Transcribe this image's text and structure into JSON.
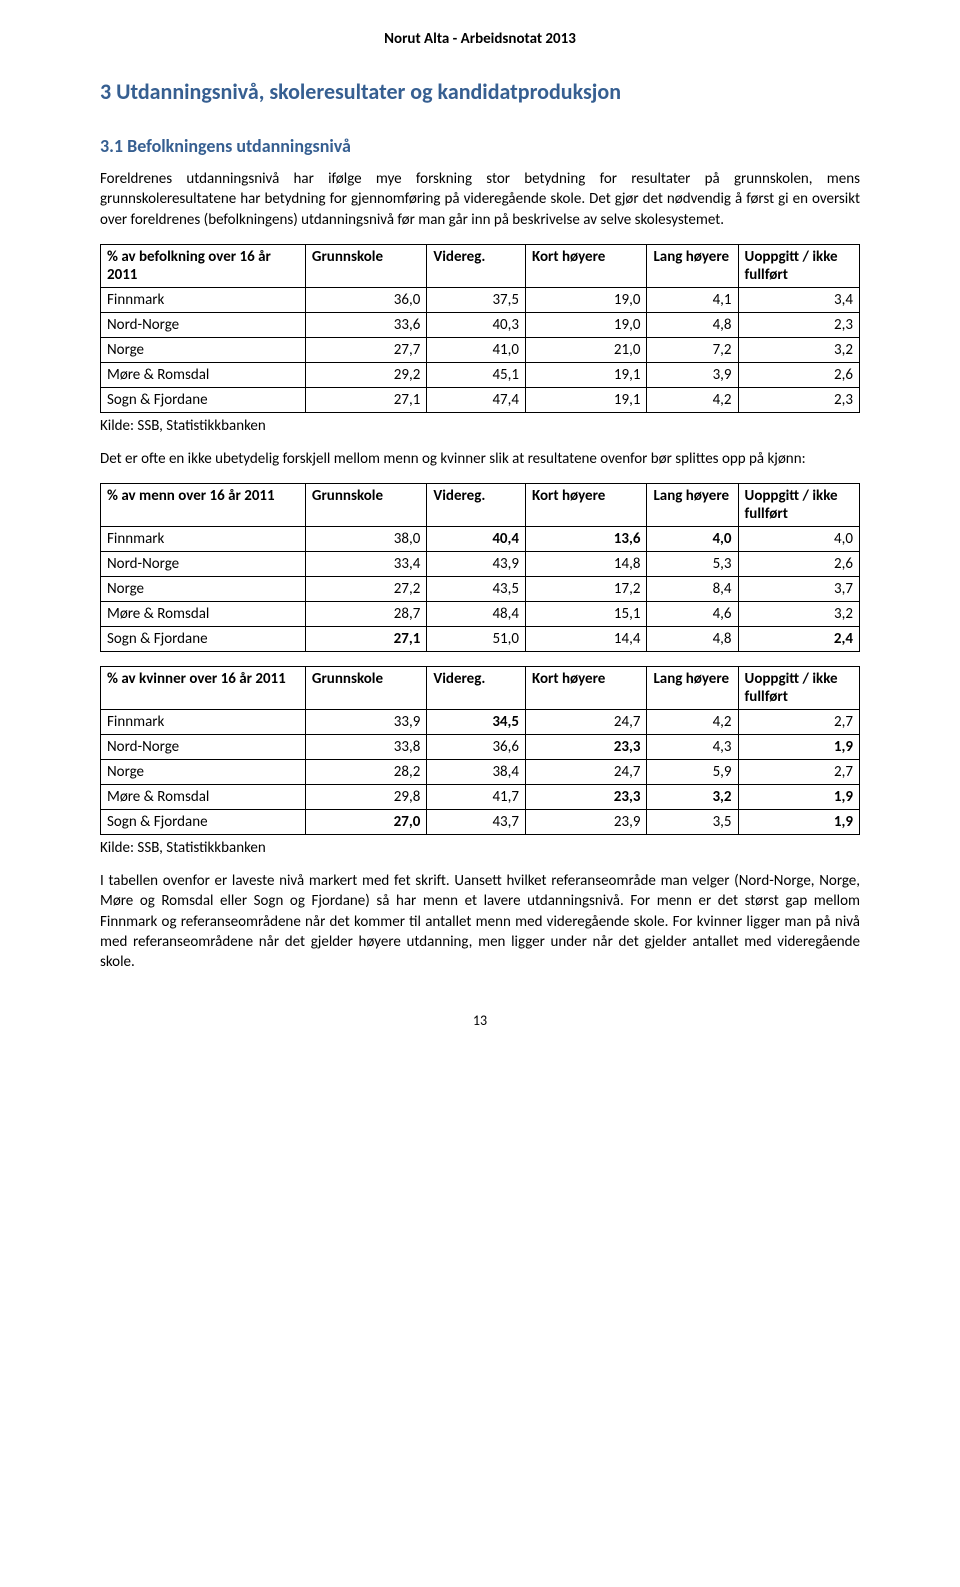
{
  "header": "Norut Alta - Arbeidsnotat 2013",
  "section_heading": "3   Utdanningsnivå, skoleresultater og kandidatproduksjon",
  "subsection_heading": "3.1 Befolkningens utdanningsnivå",
  "intro_para": "Foreldrenes utdanningsnivå har ifølge mye forskning stor betydning for resultater på grunnskolen, mens grunnskoleresultatene har betydning for gjennomføring på videregående skole. Det gjør det nødvendig å først gi en oversikt over foreldrenes (befolkningens) utdanningsnivå før man går inn på beskrivelse av selve skolesystemet.",
  "columns": {
    "label_t1": "% av befolkning over 16 år 2011",
    "label_t2": "% av menn over 16 år 2011",
    "label_t3": "% av kvinner over 16 år 2011",
    "c1": "Grunnskole",
    "c2": "Videreg.",
    "c3": "Kort høyere",
    "c4": "Lang høyere",
    "c5": "Uoppgitt / ikke fullført"
  },
  "regions": [
    "Finnmark",
    "Nord-Norge",
    "Norge",
    "Møre & Romsdal",
    "Sogn & Fjordane"
  ],
  "table1": {
    "rows": [
      [
        "36,0",
        "37,5",
        "19,0",
        "4,1",
        "3,4"
      ],
      [
        "33,6",
        "40,3",
        "19,0",
        "4,8",
        "2,3"
      ],
      [
        "27,7",
        "41,0",
        "21,0",
        "7,2",
        "3,2"
      ],
      [
        "29,2",
        "45,1",
        "19,1",
        "3,9",
        "2,6"
      ],
      [
        "27,1",
        "47,4",
        "19,1",
        "4,2",
        "2,3"
      ]
    ]
  },
  "source1": "Kilde: SSB, Statistikkbanken",
  "mid_para": "Det er ofte en ikke ubetydelig forskjell mellom menn og kvinner slik at resultatene ovenfor bør splittes opp på kjønn:",
  "table2": {
    "rows": [
      [
        {
          "v": "38,0",
          "b": false
        },
        {
          "v": "40,4",
          "b": true
        },
        {
          "v": "13,6",
          "b": true
        },
        {
          "v": "4,0",
          "b": true
        },
        {
          "v": "4,0",
          "b": false
        }
      ],
      [
        {
          "v": "33,4",
          "b": false
        },
        {
          "v": "43,9",
          "b": false
        },
        {
          "v": "14,8",
          "b": false
        },
        {
          "v": "5,3",
          "b": false
        },
        {
          "v": "2,6",
          "b": false
        }
      ],
      [
        {
          "v": "27,2",
          "b": false
        },
        {
          "v": "43,5",
          "b": false
        },
        {
          "v": "17,2",
          "b": false
        },
        {
          "v": "8,4",
          "b": false
        },
        {
          "v": "3,7",
          "b": false
        }
      ],
      [
        {
          "v": "28,7",
          "b": false
        },
        {
          "v": "48,4",
          "b": false
        },
        {
          "v": "15,1",
          "b": false
        },
        {
          "v": "4,6",
          "b": false
        },
        {
          "v": "3,2",
          "b": false
        }
      ],
      [
        {
          "v": "27,1",
          "b": true
        },
        {
          "v": "51,0",
          "b": false
        },
        {
          "v": "14,4",
          "b": false
        },
        {
          "v": "4,8",
          "b": false
        },
        {
          "v": "2,4",
          "b": true
        }
      ]
    ]
  },
  "table3": {
    "rows": [
      [
        {
          "v": "33,9",
          "b": false
        },
        {
          "v": "34,5",
          "b": true
        },
        {
          "v": "24,7",
          "b": false
        },
        {
          "v": "4,2",
          "b": false
        },
        {
          "v": "2,7",
          "b": false
        }
      ],
      [
        {
          "v": "33,8",
          "b": false
        },
        {
          "v": "36,6",
          "b": false
        },
        {
          "v": "23,3",
          "b": true
        },
        {
          "v": "4,3",
          "b": false
        },
        {
          "v": "1,9",
          "b": true
        }
      ],
      [
        {
          "v": "28,2",
          "b": false
        },
        {
          "v": "38,4",
          "b": false
        },
        {
          "v": "24,7",
          "b": false
        },
        {
          "v": "5,9",
          "b": false
        },
        {
          "v": "2,7",
          "b": false
        }
      ],
      [
        {
          "v": "29,8",
          "b": false
        },
        {
          "v": "41,7",
          "b": false
        },
        {
          "v": "23,3",
          "b": true
        },
        {
          "v": "3,2",
          "b": true
        },
        {
          "v": "1,9",
          "b": true
        }
      ],
      [
        {
          "v": "27,0",
          "b": true
        },
        {
          "v": "43,7",
          "b": false
        },
        {
          "v": "23,9",
          "b": false
        },
        {
          "v": "3,5",
          "b": false
        },
        {
          "v": "1,9",
          "b": true
        }
      ]
    ]
  },
  "source3": "Kilde: SSB, Statistikkbanken",
  "closing_para": "I tabellen ovenfor er laveste nivå markert med fet skrift. Uansett hvilket referanseområde man velger (Nord-Norge, Norge, Møre og Romsdal eller Sogn og Fjordane) så har menn et lavere utdanningsnivå. For menn er det størst gap mellom Finnmark og referanseområdene når det kommer til antallet menn med videregående skole. For kvinner ligger man på nivå med referanseområdene når det gjelder høyere utdanning, men ligger under når det gjelder antallet med videregående skole.",
  "page_number": "13"
}
